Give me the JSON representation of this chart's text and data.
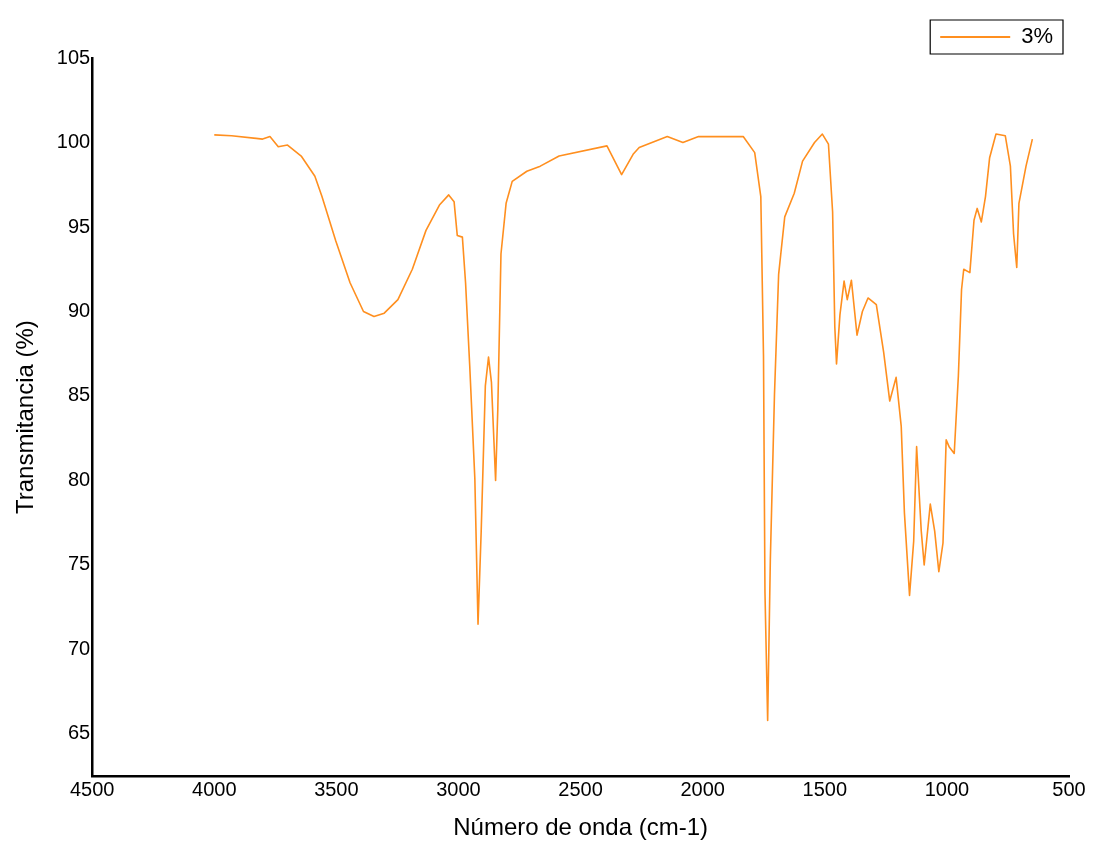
{
  "chart_data": {
    "type": "line",
    "xlabel": "Número de onda (cm-1)",
    "ylabel": "Transmitancia (%)",
    "legend": "top right",
    "grid": false,
    "marker": "none",
    "line_style": "solid",
    "xlim": [
      4500,
      500
    ],
    "xticks": [
      4500,
      4000,
      3500,
      3000,
      2500,
      2000,
      1500,
      1000,
      500
    ],
    "ylim": [
      62.5,
      105
    ],
    "yticks": [
      65,
      70,
      75,
      80,
      85,
      90,
      95,
      100,
      105
    ],
    "series": [
      {
        "name": "3%",
        "color": "#ff8f1f",
        "x": [
          4000,
          3929,
          3802,
          3772,
          3738,
          3700,
          3644,
          3588,
          3559,
          3503,
          3444,
          3389,
          3346,
          3304,
          3248,
          3189,
          3133,
          3078,
          3040,
          3018,
          3005,
          2984,
          2971,
          2954,
          2933,
          2920,
          2907,
          2890,
          2877,
          2865,
          2848,
          2839,
          2826,
          2805,
          2780,
          2720,
          2665,
          2588,
          2392,
          2332,
          2285,
          2260,
          2145,
          2081,
          2017,
          1834,
          1787,
          1762,
          1751,
          1745,
          1734,
          1723,
          1706,
          1689,
          1664,
          1625,
          1591,
          1542,
          1510,
          1485,
          1468,
          1459,
          1452,
          1438,
          1421,
          1408,
          1391,
          1368,
          1346,
          1323,
          1289,
          1259,
          1234,
          1208,
          1187,
          1174,
          1153,
          1136,
          1124,
          1105,
          1093,
          1068,
          1050,
          1033,
          1016,
          1003,
          991,
          970,
          953,
          940,
          931,
          906,
          889,
          876,
          859,
          842,
          825,
          799,
          761,
          740,
          727,
          714,
          705,
          676,
          650
        ],
        "values": [
          100.45,
          100.4,
          100.2,
          100.35,
          99.75,
          99.85,
          99.2,
          98.0,
          96.8,
          94.2,
          91.7,
          90.0,
          89.7,
          89.9,
          90.7,
          92.5,
          94.8,
          96.3,
          96.9,
          96.5,
          94.5,
          94.4,
          91.7,
          86.8,
          80.1,
          71.5,
          77.0,
          85.6,
          87.3,
          85.8,
          80.0,
          84.2,
          93.4,
          96.4,
          97.7,
          98.3,
          98.6,
          99.2,
          99.8,
          98.1,
          99.3,
          99.7,
          100.35,
          100.0,
          100.35,
          100.35,
          99.4,
          96.8,
          87.4,
          73.4,
          65.8,
          75.3,
          85.1,
          92.2,
          95.6,
          97.0,
          98.9,
          100.0,
          100.5,
          99.9,
          95.9,
          89.1,
          86.9,
          89.8,
          91.8,
          90.7,
          91.85,
          88.6,
          90.0,
          90.8,
          90.4,
          87.6,
          84.7,
          86.1,
          83.2,
          78.1,
          73.2,
          76.4,
          82.0,
          77.0,
          75.0,
          78.6,
          77.0,
          74.6,
          76.3,
          82.4,
          82.0,
          81.6,
          86.2,
          91.3,
          92.5,
          92.3,
          95.4,
          96.1,
          95.3,
          96.8,
          99.1,
          100.5,
          100.4,
          98.6,
          94.6,
          92.6,
          96.4,
          98.6,
          100.2
        ]
      }
    ]
  }
}
